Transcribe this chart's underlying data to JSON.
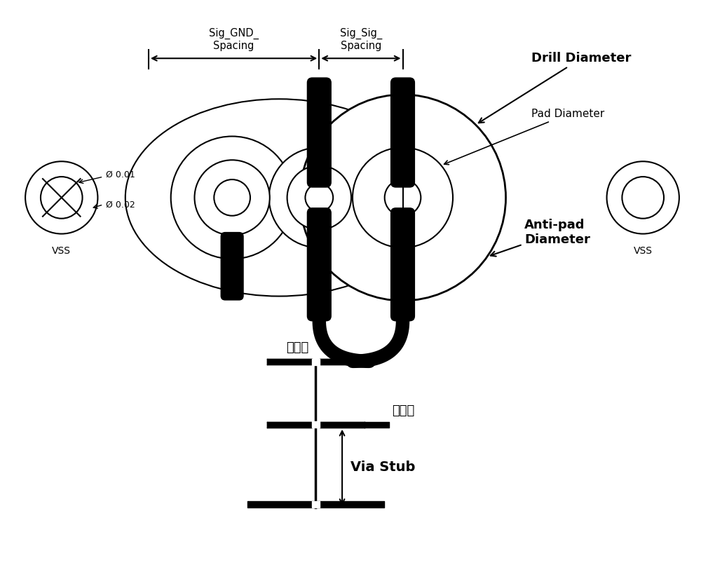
{
  "bg_color": "#ffffff",
  "line_color": "#000000",
  "fig_width": 10.0,
  "fig_height": 8.36,
  "labels": {
    "sig_gnd_spacing": "Sig_GND_\nSpacing",
    "sig_sig_spacing": "Sig_Sig_\nSpacing",
    "drill_diameter": "Drill Diameter",
    "pad_diameter": "Pad Diameter",
    "anti_pad_diameter": "Anti-pad\nDiameter",
    "vss_left": "VSS",
    "vss_right": "VSS",
    "phi_01": "Ø 0.01",
    "phi_02": "Ø 0.02",
    "signal_in": "信号进",
    "signal_out": "信号出",
    "via_stub": "Via Stub"
  }
}
